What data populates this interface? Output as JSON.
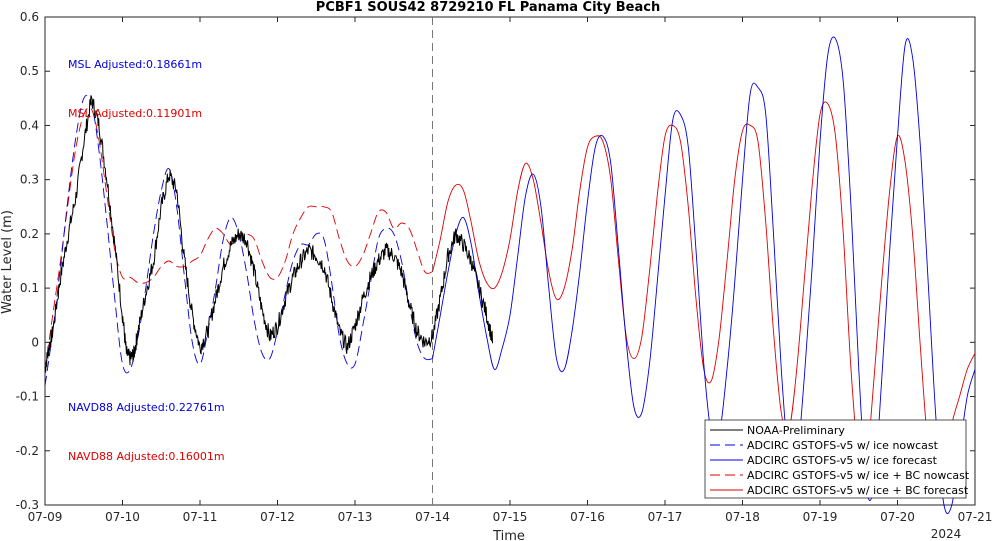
{
  "chart_data": {
    "type": "line",
    "title": "PCBF1 SOUS42 8729210 FL Panama City Beach",
    "xlabel": "Time",
    "ylabel": "Water Level (m)",
    "x_ticks": [
      "07-09",
      "07-10",
      "07-11",
      "07-12",
      "07-13",
      "07-14",
      "07-15",
      "07-16",
      "07-17",
      "07-18",
      "07-19",
      "07-20",
      "07-21"
    ],
    "x_year_label": "2024",
    "xlim_days": [
      9,
      21
    ],
    "ylim": [
      -0.3,
      0.6
    ],
    "y_ticks": [
      "-0.3",
      "-0.2",
      "-0.1",
      "0",
      "0.1",
      "0.2",
      "0.3",
      "0.4",
      "0.5",
      "0.6"
    ],
    "y_tick_values": [
      -0.3,
      -0.2,
      -0.1,
      0,
      0.1,
      0.2,
      0.3,
      0.4,
      0.5,
      0.6
    ],
    "nowcast_forecast_divider_day": 14,
    "grid": false,
    "legend_position": "bottom-right",
    "annotations": [
      {
        "text": "MSL Adjusted:0.18661m",
        "color": "#0000dd"
      },
      {
        "text": "MSL Adjusted:0.11901m",
        "color": "#dd0000"
      },
      {
        "text": "NAVD88 Adjusted:0.22761m",
        "color": "#0000dd"
      },
      {
        "text": "NAVD88 Adjusted:0.16001m",
        "color": "#dd0000"
      }
    ],
    "series": [
      {
        "name": "NOAA-Preliminary",
        "color": "#000000",
        "style": "solid",
        "noisy": true,
        "x": [
          9.0,
          9.05,
          9.1,
          9.2,
          9.3,
          9.4,
          9.5,
          9.6,
          9.7,
          9.8,
          9.9,
          10.0,
          10.05,
          10.1,
          10.15,
          10.2,
          10.3,
          10.4,
          10.5,
          10.6,
          10.7,
          10.8,
          10.9,
          11.0,
          11.1,
          11.2,
          11.3,
          11.4,
          11.5,
          11.6,
          11.7,
          11.8,
          11.9,
          12.0,
          12.1,
          12.2,
          12.3,
          12.4,
          12.5,
          12.6,
          12.7,
          12.8,
          12.9,
          13.0,
          13.1,
          13.2,
          13.3,
          13.4,
          13.5,
          13.6,
          13.7,
          13.8,
          13.9,
          14.0,
          14.1,
          14.2,
          14.3,
          14.4,
          14.5,
          14.6,
          14.7,
          14.78
        ],
        "y": [
          -0.05,
          -0.01,
          0.02,
          0.12,
          0.2,
          0.27,
          0.37,
          0.45,
          0.4,
          0.3,
          0.18,
          0.05,
          -0.02,
          -0.03,
          -0.02,
          0.02,
          0.09,
          0.15,
          0.25,
          0.31,
          0.28,
          0.15,
          0.05,
          -0.01,
          0.02,
          0.08,
          0.14,
          0.18,
          0.2,
          0.19,
          0.13,
          0.06,
          0.01,
          0.03,
          0.08,
          0.12,
          0.15,
          0.17,
          0.16,
          0.14,
          0.08,
          0.02,
          -0.01,
          0.03,
          0.08,
          0.12,
          0.15,
          0.17,
          0.16,
          0.13,
          0.07,
          0.02,
          0.0,
          0.01,
          0.08,
          0.16,
          0.2,
          0.18,
          0.15,
          0.1,
          0.05,
          0.0
        ]
      },
      {
        "name": "ADCIRC GSTOFS-v5 w/ ice nowcast",
        "color": "#0000dd",
        "style": "dashed",
        "x": [
          9.0,
          9.1,
          9.2,
          9.3,
          9.4,
          9.5,
          9.6,
          9.7,
          9.8,
          9.9,
          10.0,
          10.1,
          10.2,
          10.3,
          10.4,
          10.5,
          10.6,
          10.7,
          10.8,
          10.9,
          11.0,
          11.1,
          11.2,
          11.3,
          11.4,
          11.5,
          11.6,
          11.7,
          11.8,
          11.9,
          12.0,
          12.1,
          12.2,
          12.3,
          12.4,
          12.5,
          12.6,
          12.7,
          12.8,
          12.9,
          13.0,
          13.1,
          13.2,
          13.3,
          13.4,
          13.5,
          13.6,
          13.7,
          13.8,
          13.9,
          14.0
        ],
        "y": [
          -0.08,
          0.02,
          0.14,
          0.27,
          0.38,
          0.45,
          0.44,
          0.35,
          0.22,
          0.08,
          -0.04,
          -0.05,
          0.01,
          0.1,
          0.2,
          0.28,
          0.32,
          0.25,
          0.12,
          0.0,
          -0.04,
          0.02,
          0.1,
          0.19,
          0.23,
          0.2,
          0.13,
          0.04,
          -0.02,
          -0.03,
          0.02,
          0.09,
          0.15,
          0.18,
          0.18,
          0.2,
          0.19,
          0.11,
          0.01,
          -0.04,
          -0.04,
          0.03,
          0.11,
          0.19,
          0.21,
          0.2,
          0.15,
          0.07,
          0.0,
          -0.03,
          -0.03
        ]
      },
      {
        "name": "ADCIRC GSTOFS-v5 w/ ice forecast",
        "color": "#0000dd",
        "style": "solid",
        "x": [
          14.0,
          14.1,
          14.2,
          14.3,
          14.4,
          14.5,
          14.6,
          14.7,
          14.8,
          14.9,
          15.0,
          15.1,
          15.2,
          15.3,
          15.4,
          15.5,
          15.6,
          15.7,
          15.8,
          15.9,
          16.0,
          16.1,
          16.2,
          16.3,
          16.4,
          16.5,
          16.6,
          16.7,
          16.8,
          16.9,
          17.0,
          17.1,
          17.2,
          17.3,
          17.4,
          17.5,
          17.6,
          17.7,
          17.8,
          17.9,
          18.0,
          18.1,
          18.2,
          18.3,
          18.4,
          18.5,
          18.6,
          18.7,
          18.8,
          18.9,
          19.0,
          19.1,
          19.2,
          19.3,
          19.4,
          19.5,
          19.6,
          19.7,
          19.8,
          19.9,
          20.0,
          20.1,
          20.2,
          20.3,
          20.4,
          20.5,
          20.6,
          20.7,
          20.8,
          20.9,
          21.0
        ],
        "y": [
          -0.03,
          0.05,
          0.13,
          0.2,
          0.23,
          0.18,
          0.09,
          0.01,
          -0.05,
          -0.01,
          0.05,
          0.16,
          0.27,
          0.31,
          0.25,
          0.1,
          -0.03,
          -0.05,
          0.02,
          0.13,
          0.26,
          0.36,
          0.38,
          0.33,
          0.17,
          0.0,
          -0.12,
          -0.13,
          -0.04,
          0.11,
          0.27,
          0.41,
          0.42,
          0.36,
          0.17,
          -0.04,
          -0.17,
          -0.17,
          -0.05,
          0.11,
          0.3,
          0.46,
          0.47,
          0.42,
          0.2,
          -0.05,
          -0.22,
          -0.22,
          -0.06,
          0.14,
          0.37,
          0.53,
          0.56,
          0.48,
          0.25,
          -0.05,
          -0.27,
          -0.26,
          -0.06,
          0.17,
          0.38,
          0.55,
          0.52,
          0.35,
          0.1,
          -0.15,
          -0.3,
          -0.3,
          -0.2,
          -0.1,
          -0.05
        ]
      },
      {
        "name": "ADCIRC GSTOFS-v5 w/ ice + BC nowcast",
        "color": "#dd0000",
        "style": "dashed",
        "x": [
          9.0,
          9.1,
          9.2,
          9.3,
          9.4,
          9.5,
          9.6,
          9.7,
          9.8,
          9.9,
          10.0,
          10.1,
          10.2,
          10.3,
          10.4,
          10.5,
          10.6,
          10.7,
          10.8,
          10.9,
          11.0,
          11.1,
          11.2,
          11.3,
          11.4,
          11.5,
          11.6,
          11.7,
          11.8,
          11.9,
          12.0,
          12.1,
          12.2,
          12.3,
          12.4,
          12.5,
          12.6,
          12.7,
          12.8,
          12.9,
          13.0,
          13.1,
          13.2,
          13.3,
          13.4,
          13.5,
          13.6,
          13.7,
          13.8,
          13.9,
          14.0
        ],
        "y": [
          -0.05,
          0.05,
          0.15,
          0.26,
          0.36,
          0.42,
          0.43,
          0.37,
          0.27,
          0.17,
          0.12,
          0.12,
          0.11,
          0.11,
          0.12,
          0.14,
          0.15,
          0.14,
          0.14,
          0.15,
          0.16,
          0.19,
          0.21,
          0.2,
          0.18,
          0.2,
          0.2,
          0.19,
          0.15,
          0.12,
          0.12,
          0.15,
          0.2,
          0.23,
          0.25,
          0.25,
          0.25,
          0.24,
          0.19,
          0.15,
          0.14,
          0.16,
          0.2,
          0.24,
          0.24,
          0.21,
          0.22,
          0.21,
          0.17,
          0.13,
          0.13
        ]
      },
      {
        "name": "ADCIRC GSTOFS-v5 w/ ice + BC forecast",
        "color": "#dd0000",
        "style": "solid",
        "x": [
          14.0,
          14.1,
          14.2,
          14.3,
          14.4,
          14.5,
          14.6,
          14.7,
          14.8,
          14.9,
          15.0,
          15.1,
          15.2,
          15.3,
          15.4,
          15.5,
          15.6,
          15.7,
          15.8,
          15.9,
          16.0,
          16.1,
          16.2,
          16.3,
          16.4,
          16.5,
          16.6,
          16.7,
          16.8,
          16.9,
          17.0,
          17.1,
          17.2,
          17.3,
          17.4,
          17.5,
          17.6,
          17.7,
          17.8,
          17.9,
          18.0,
          18.1,
          18.2,
          18.3,
          18.4,
          18.5,
          18.6,
          18.7,
          18.8,
          18.9,
          19.0,
          19.1,
          19.2,
          19.3,
          19.4,
          19.5,
          19.6,
          19.7,
          19.8,
          19.9,
          20.0,
          20.1,
          20.2,
          20.3,
          20.4,
          20.5,
          20.6,
          20.7,
          20.8,
          20.9,
          21.0
        ],
        "y": [
          0.13,
          0.19,
          0.26,
          0.29,
          0.28,
          0.22,
          0.15,
          0.11,
          0.1,
          0.13,
          0.19,
          0.28,
          0.33,
          0.3,
          0.22,
          0.13,
          0.08,
          0.1,
          0.17,
          0.28,
          0.36,
          0.38,
          0.37,
          0.3,
          0.15,
          0.01,
          -0.03,
          0.01,
          0.13,
          0.27,
          0.38,
          0.4,
          0.37,
          0.25,
          0.08,
          -0.05,
          -0.07,
          0.01,
          0.15,
          0.3,
          0.39,
          0.4,
          0.37,
          0.22,
          0.02,
          -0.13,
          -0.16,
          -0.05,
          0.12,
          0.29,
          0.42,
          0.44,
          0.38,
          0.2,
          -0.05,
          -0.22,
          -0.22,
          -0.06,
          0.12,
          0.28,
          0.38,
          0.33,
          0.19,
          -0.02,
          -0.2,
          -0.26,
          -0.22,
          -0.15,
          -0.1,
          -0.05,
          -0.02
        ]
      }
    ]
  }
}
